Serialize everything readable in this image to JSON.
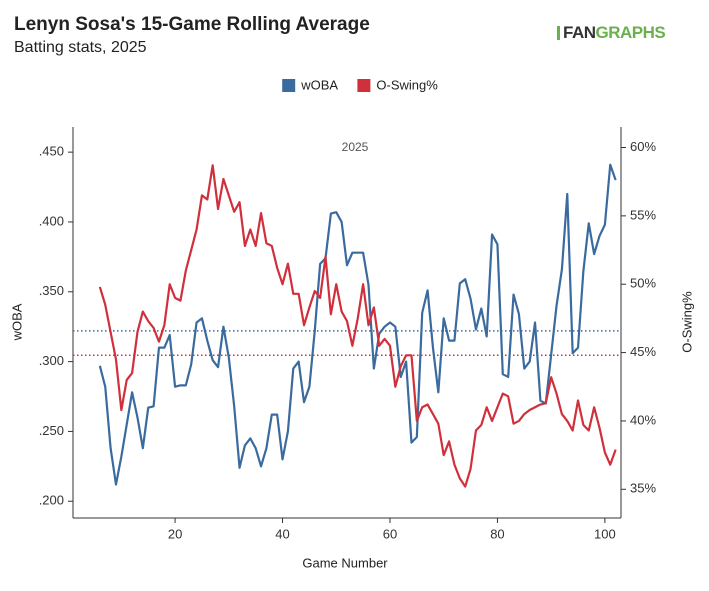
{
  "chart_data": {
    "type": "line",
    "title": "Lenyn Sosa's 15-Game Rolling Average",
    "subtitle": "Batting stats, 2025",
    "logo": [
      "FAN",
      "GRAPHS"
    ],
    "annotation": "2025",
    "xlabel": "Game Number",
    "ylabel": "wOBA",
    "y2label": "O-Swing%",
    "x": [
      6,
      7,
      8,
      9,
      10,
      11,
      12,
      13,
      14,
      15,
      16,
      17,
      18,
      19,
      20,
      21,
      22,
      23,
      24,
      25,
      26,
      27,
      28,
      29,
      30,
      31,
      32,
      33,
      34,
      35,
      36,
      37,
      38,
      39,
      40,
      41,
      42,
      43,
      44,
      45,
      46,
      47,
      48,
      49,
      50,
      51,
      52,
      53,
      54,
      55,
      56,
      57,
      58,
      59,
      60,
      61,
      62,
      63,
      64,
      65,
      66,
      67,
      68,
      69,
      70,
      71,
      72,
      73,
      74,
      75,
      76,
      77,
      78,
      79,
      80,
      81,
      82,
      83,
      84,
      85,
      86,
      87,
      88,
      89,
      90,
      91,
      92,
      93,
      94,
      95,
      96,
      97,
      98,
      99,
      100,
      101,
      102
    ],
    "series": [
      {
        "name": "wOBA",
        "color": "#3a6a9e",
        "axis": "y",
        "values": [
          0.297,
          0.282,
          0.238,
          0.212,
          0.232,
          0.255,
          0.278,
          0.26,
          0.238,
          0.267,
          0.268,
          0.31,
          0.31,
          0.319,
          0.282,
          0.283,
          0.283,
          0.298,
          0.328,
          0.331,
          0.315,
          0.301,
          0.296,
          0.325,
          0.303,
          0.268,
          0.224,
          0.24,
          0.245,
          0.238,
          0.225,
          0.238,
          0.262,
          0.262,
          0.23,
          0.25,
          0.295,
          0.3,
          0.271,
          0.282,
          0.322,
          0.37,
          0.374,
          0.406,
          0.407,
          0.4,
          0.369,
          0.378,
          0.378,
          0.378,
          0.355,
          0.295,
          0.32,
          0.325,
          0.328,
          0.325,
          0.289,
          0.3,
          0.242,
          0.246,
          0.335,
          0.351,
          0.31,
          0.278,
          0.331,
          0.315,
          0.315,
          0.356,
          0.359,
          0.345,
          0.323,
          0.338,
          0.318,
          0.391,
          0.384,
          0.291,
          0.289,
          0.348,
          0.334,
          0.295,
          0.3,
          0.328,
          0.272,
          0.27,
          0.305,
          0.34,
          0.366,
          0.42,
          0.306,
          0.31,
          0.365,
          0.399,
          0.377,
          0.39,
          0.398,
          0.441,
          0.43
        ]
      },
      {
        "name": "O-Swing%",
        "color": "#d0303b",
        "axis": "y2",
        "values": [
          49.8,
          48.5,
          46.5,
          44.5,
          40.8,
          43.0,
          43.5,
          46.5,
          48.0,
          47.3,
          46.8,
          45.8,
          47.0,
          50.0,
          49.0,
          48.8,
          51.0,
          52.5,
          54.0,
          56.5,
          56.2,
          58.7,
          55.5,
          57.7,
          56.5,
          55.3,
          56.0,
          52.8,
          54.0,
          52.8,
          55.2,
          53.0,
          52.8,
          51.2,
          50.0,
          51.5,
          49.3,
          49.3,
          47.0,
          48.3,
          49.5,
          49.0,
          52.0,
          47.8,
          50.0,
          48.0,
          47.3,
          45.5,
          47.5,
          50.0,
          47.0,
          48.3,
          45.5,
          46.0,
          45.5,
          42.5,
          44.0,
          44.8,
          44.8,
          40.0,
          41.0,
          41.2,
          40.5,
          39.8,
          37.5,
          38.5,
          36.8,
          35.8,
          35.2,
          36.5,
          39.3,
          39.7,
          41.0,
          40.0,
          41.0,
          42.0,
          41.8,
          39.8,
          40.0,
          40.5,
          40.8,
          41.0,
          41.2,
          41.3,
          43.2,
          42.0,
          40.5,
          40.0,
          39.3,
          41.5,
          39.7,
          39.3,
          41.0,
          39.5,
          37.7,
          36.8,
          37.9
        ]
      }
    ],
    "reference_lines": [
      {
        "value": 0.322,
        "color": "#3a6a9e",
        "axis": "y"
      },
      {
        "value": 44.8,
        "color": "#d0303b",
        "axis": "y2"
      }
    ],
    "xlim": [
      1,
      103
    ],
    "xticks": [
      20,
      40,
      60,
      80,
      100
    ],
    "ylim": [
      0.188,
      0.468
    ],
    "yticks": [
      {
        "value": 0.2,
        "label": ".200"
      },
      {
        "value": 0.25,
        "label": ".250"
      },
      {
        "value": 0.3,
        "label": ".300"
      },
      {
        "value": 0.35,
        "label": ".350"
      },
      {
        "value": 0.4,
        "label": ".400"
      },
      {
        "value": 0.45,
        "label": ".450"
      }
    ],
    "y2lim": [
      32.9,
      61.5
    ],
    "y2ticks": [
      {
        "value": 35,
        "label": "35%"
      },
      {
        "value": 40,
        "label": "40%"
      },
      {
        "value": 45,
        "label": "45%"
      },
      {
        "value": 50,
        "label": "50%"
      },
      {
        "value": 55,
        "label": "55%"
      },
      {
        "value": 60,
        "label": "60%"
      }
    ],
    "legend": "top"
  }
}
